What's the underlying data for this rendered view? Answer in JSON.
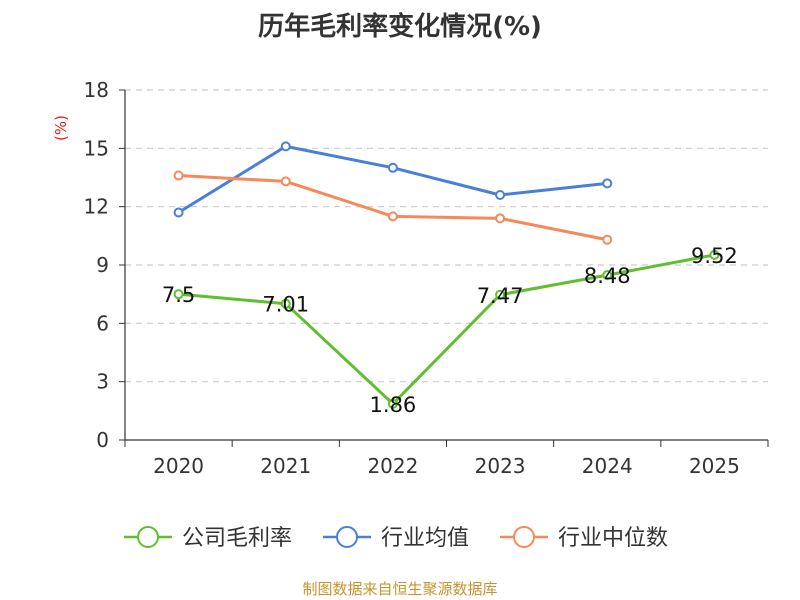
{
  "chart_data": {
    "type": "line",
    "title": "历年毛利率变化情况(%)",
    "ylabel": "(%)",
    "categories": [
      "2020",
      "2021",
      "2022",
      "2023",
      "2024",
      "2025"
    ],
    "ylim": [
      0,
      18
    ],
    "yticks": [
      0,
      3,
      6,
      9,
      12,
      15,
      18
    ],
    "grid": true,
    "legend_position": "bottom",
    "series": [
      {
        "name": "公司毛利率",
        "color": "#5fbf2e",
        "values": [
          7.5,
          7.01,
          1.86,
          7.47,
          8.48,
          9.52
        ],
        "labels": [
          "7.5",
          "7.01",
          "1.86",
          "7.47",
          "8.48",
          "9.52"
        ]
      },
      {
        "name": "行业均值",
        "color": "#4a7fd8",
        "values": [
          11.7,
          15.1,
          14.0,
          12.6,
          13.2,
          null
        ]
      },
      {
        "name": "行业中位数",
        "color": "#f5895a",
        "values": [
          13.6,
          13.3,
          11.5,
          11.4,
          10.3,
          null
        ]
      }
    ]
  },
  "ylabel_color": "#e02020",
  "source": "制图数据来自恒生聚源数据库"
}
